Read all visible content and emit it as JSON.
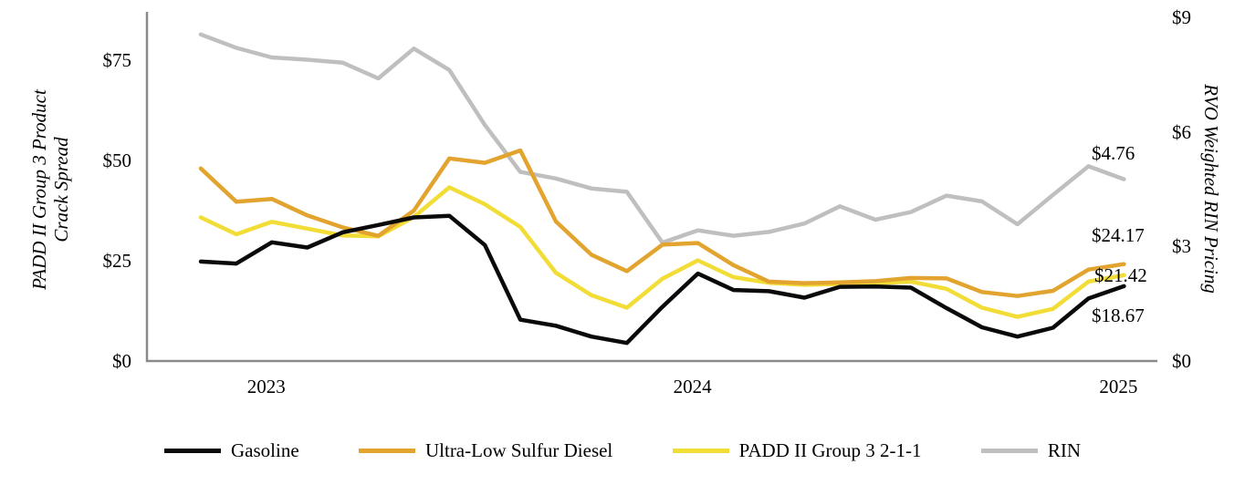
{
  "chart_data": {
    "type": "line",
    "frequency": "monthly",
    "points_per_series": 27,
    "legend_position": "bottom",
    "grid": "off",
    "axis_color": "#8a8a8a",
    "left_axis": {
      "title": "PADD II Group 3 Product Crack Spread",
      "ticks": [
        {
          "label": "$75",
          "value": 75
        },
        {
          "label": "$50",
          "value": 50
        },
        {
          "label": "$25",
          "value": 25
        },
        {
          "label": "$0",
          "value": 0
        }
      ],
      "range": [
        0,
        87
      ]
    },
    "right_axis": {
      "title": "RVO Weighted RIN Pricing",
      "ticks": [
        {
          "label": "$9",
          "value": 9
        },
        {
          "label": "$6",
          "value": 6
        },
        {
          "label": "$3",
          "value": 3
        },
        {
          "label": "$0",
          "value": 0
        }
      ],
      "range": [
        0,
        9.1
      ]
    },
    "x_axis": {
      "ticks": [
        {
          "label": "2023",
          "index": 2
        },
        {
          "label": "2024",
          "index": 14
        },
        {
          "label": "2025",
          "index": 26
        }
      ]
    },
    "series": [
      {
        "id": "gasoline",
        "name": "Gasoline",
        "color": "#0a0a0a",
        "axis": "left",
        "end_label": "$18.67",
        "values": [
          24.8,
          24.3,
          29.6,
          28.3,
          32.1,
          33.9,
          35.8,
          36.2,
          28.9,
          10.3,
          8.8,
          6.1,
          4.5,
          13.5,
          21.8,
          17.7,
          17.4,
          15.8,
          18.5,
          18.6,
          18.3,
          13.2,
          8.4,
          6.1,
          8.3,
          15.6,
          18.67
        ]
      },
      {
        "id": "ulsd",
        "name": "Ultra-Low Sulfur Diesel",
        "color": "#e2a42e",
        "axis": "left",
        "end_label": "$24.17",
        "values": [
          48.0,
          39.7,
          40.4,
          36.3,
          33.3,
          31.2,
          37.5,
          50.5,
          49.4,
          52.5,
          34.8,
          26.5,
          22.4,
          29.0,
          29.4,
          23.9,
          19.8,
          19.4,
          19.6,
          19.9,
          20.7,
          20.6,
          17.2,
          16.2,
          17.5,
          22.8,
          24.17
        ]
      },
      {
        "id": "padd-ii-group-3-2-1-1",
        "name": "PADD II Group 3 2-1-1",
        "color": "#f2dc36",
        "axis": "left",
        "end_label": "$21.42",
        "values": [
          35.8,
          31.6,
          34.7,
          33.0,
          31.3,
          31.1,
          35.9,
          43.3,
          39.1,
          33.4,
          22.0,
          16.4,
          13.3,
          20.5,
          25.1,
          20.9,
          19.5,
          19.0,
          19.2,
          19.4,
          19.8,
          18.0,
          13.3,
          11.0,
          13.0,
          19.8,
          21.42
        ]
      },
      {
        "id": "rin",
        "name": "RIN",
        "color": "#bfbfbf",
        "axis": "right",
        "end_label": "$4.76",
        "values": [
          8.55,
          8.2,
          7.95,
          7.89,
          7.81,
          7.4,
          8.18,
          7.62,
          6.18,
          4.95,
          4.78,
          4.52,
          4.43,
          3.1,
          3.42,
          3.28,
          3.38,
          3.6,
          4.05,
          3.7,
          3.9,
          4.33,
          4.18,
          3.58,
          4.35,
          5.1,
          4.76
        ]
      }
    ],
    "end_labels": [
      {
        "text": "$4.76",
        "series": "rin"
      },
      {
        "text": "$24.17",
        "series": "ulsd"
      },
      {
        "text": "$21.42",
        "series": "padd-ii-group-3-2-1-1"
      },
      {
        "text": "$18.67",
        "series": "gasoline"
      }
    ]
  }
}
